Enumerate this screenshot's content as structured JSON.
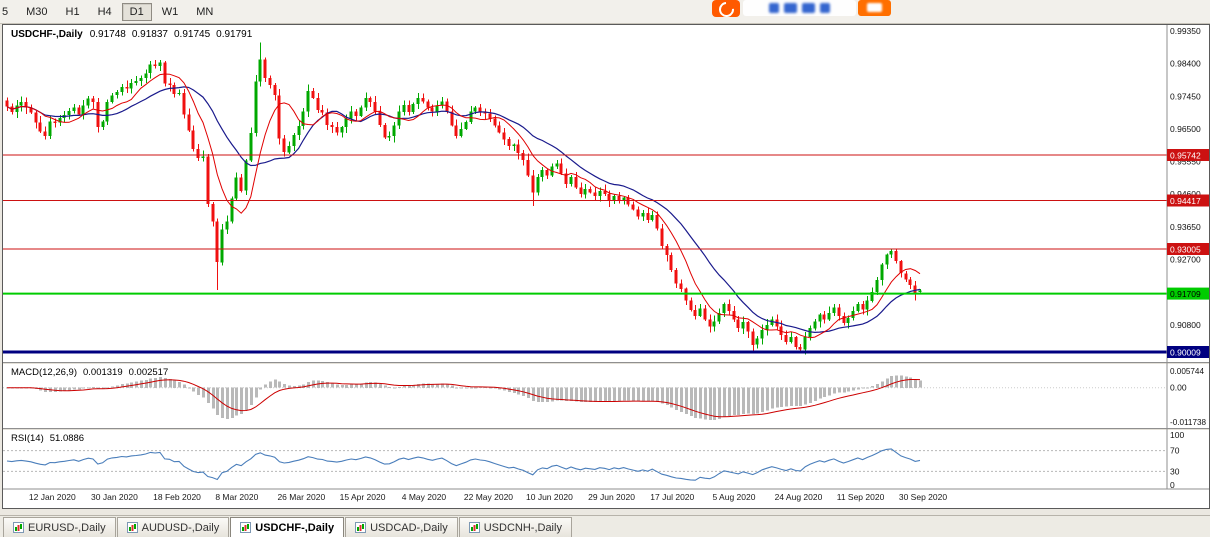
{
  "toolbar": {
    "periods": [
      {
        "label": "5",
        "active": false
      },
      {
        "label": "M30",
        "active": false
      },
      {
        "label": "H1",
        "active": false
      },
      {
        "label": "H4",
        "active": false
      },
      {
        "label": "D1",
        "active": true
      },
      {
        "label": "W1",
        "active": false
      },
      {
        "label": "MN",
        "active": false
      }
    ]
  },
  "overlay": {
    "left_color": "#ff5a00",
    "glyph_color": "#3566cf",
    "right_color": "#ff6f00"
  },
  "quote": {
    "symbol": "USDCHF-,Daily",
    "open": "0.91748",
    "high": "0.91837",
    "low": "0.91745",
    "close": "0.91791"
  },
  "indicators": {
    "macd": {
      "label": "MACD(12,26,9)",
      "value_main": "0.001319",
      "value_signal": "0.002517",
      "axis": [
        "0.005744",
        "0.00",
        "-0.011738"
      ]
    },
    "rsi": {
      "label": "RSI(14)",
      "value": "51.0886",
      "axis": [
        "100",
        "70",
        "30",
        "0"
      ]
    }
  },
  "price_scale": {
    "ticks": [
      "0.99350",
      "0.98400",
      "0.97450",
      "0.96500",
      "0.95550",
      "0.94600",
      "0.93650",
      "0.92700",
      "0.91750",
      "0.90800",
      "0.89850"
    ],
    "badges": [
      {
        "price": 0.95742,
        "label": "0.95742",
        "color": "#cc1111",
        "text_color": "#ffffff",
        "width": 1
      },
      {
        "price": 0.94417,
        "label": "0.94417",
        "color": "#cc1111",
        "text_color": "#ffffff",
        "width": 1
      },
      {
        "price": 0.93005,
        "label": "0.93005",
        "color": "#cc1111",
        "text_color": "#ffffff",
        "width": 1
      },
      {
        "price": 0.91709,
        "label": "0.91709",
        "color": "#00cc00",
        "text_color": "#000000",
        "width": 2
      },
      {
        "price": 0.90009,
        "label": "0.90009",
        "color": "#000080",
        "text_color": "#ffffff",
        "width": 3
      }
    ]
  },
  "x_axis": {
    "labels": [
      {
        "text": "12 Jan 2020",
        "i": 5
      },
      {
        "text": "30 Jan 2020",
        "i": 18
      },
      {
        "text": "18 Feb 2020",
        "i": 31
      },
      {
        "text": "8 Mar 2020",
        "i": 44
      },
      {
        "text": "26 Mar 2020",
        "i": 57
      },
      {
        "text": "15 Apr 2020",
        "i": 70
      },
      {
        "text": "4 May 2020",
        "i": 83
      },
      {
        "text": "22 May 2020",
        "i": 96
      },
      {
        "text": "10 Jun 2020",
        "i": 109
      },
      {
        "text": "29 Jun 2020",
        "i": 122
      },
      {
        "text": "17 Jul 2020",
        "i": 135
      },
      {
        "text": "5 Aug 2020",
        "i": 148
      },
      {
        "text": "24 Aug 2020",
        "i": 161
      },
      {
        "text": "11 Sep 2020",
        "i": 174
      },
      {
        "text": "30 Sep 2020",
        "i": 187
      }
    ]
  },
  "tabs": [
    {
      "label": "EURUSD-,Daily",
      "active": false
    },
    {
      "label": "AUDUSD-,Daily",
      "active": false
    },
    {
      "label": "USDCHF-,Daily",
      "active": true
    },
    {
      "label": "USDCAD-,Daily",
      "active": false
    },
    {
      "label": "USDCNH-,Daily",
      "active": false
    }
  ],
  "chart_data": {
    "type": "candlestick",
    "symbol": "USDCHF",
    "timeframe": "Daily",
    "ohlc_current": {
      "open": 0.91748,
      "high": 0.91837,
      "low": 0.91745,
      "close": 0.91791
    },
    "price_axis_range": [
      0.8972,
      0.99437
    ],
    "levels": [
      {
        "price": 0.95742,
        "color": "red"
      },
      {
        "price": 0.94417,
        "color": "red"
      },
      {
        "price": 0.93005,
        "color": "red"
      },
      {
        "price": 0.91709,
        "color": "green"
      },
      {
        "price": 0.90009,
        "color": "navy"
      }
    ],
    "macd_axis": {
      "max": 0.005744,
      "min": -0.011738
    },
    "rsi_levels": [
      70,
      30
    ],
    "colors": {
      "bull": "#00a800",
      "bear": "#f01010",
      "ma_fast": "#e00000",
      "ma_slow": "#1a1a8c",
      "macd_hist": "#b9b9b9",
      "macd_signal": "#cc0000",
      "rsi": "#4a7ebb"
    },
    "closes": [
      0.9715,
      0.97,
      0.9718,
      0.9728,
      0.9712,
      0.9698,
      0.9668,
      0.9643,
      0.963,
      0.9672,
      0.9668,
      0.9682,
      0.969,
      0.9702,
      0.9713,
      0.9692,
      0.9718,
      0.9738,
      0.9728,
      0.9655,
      0.9672,
      0.9728,
      0.9748,
      0.9758,
      0.9772,
      0.9768,
      0.9783,
      0.979,
      0.9798,
      0.9812,
      0.9838,
      0.9833,
      0.9843,
      0.9782,
      0.9778,
      0.9752,
      0.9755,
      0.9692,
      0.9645,
      0.9592,
      0.9565,
      0.957,
      0.9432,
      0.938,
      0.9262,
      0.9358,
      0.938,
      0.9448,
      0.9508,
      0.947,
      0.9558,
      0.9638,
      0.9788,
      0.9852,
      0.9798,
      0.9778,
      0.9748,
      0.9622,
      0.9582,
      0.96,
      0.9632,
      0.9658,
      0.97,
      0.976,
      0.974,
      0.9705,
      0.9698,
      0.9662,
      0.9655,
      0.964,
      0.9655,
      0.968,
      0.97,
      0.9688,
      0.9712,
      0.974,
      0.9728,
      0.97,
      0.9662,
      0.9625,
      0.963,
      0.966,
      0.97,
      0.972,
      0.97,
      0.9722,
      0.974,
      0.973,
      0.9712,
      0.97,
      0.9718,
      0.973,
      0.97,
      0.966,
      0.963,
      0.965,
      0.967,
      0.97,
      0.9712,
      0.97,
      0.9695,
      0.968,
      0.966,
      0.964,
      0.962,
      0.96,
      0.9605,
      0.958,
      0.956,
      0.9515,
      0.9465,
      0.951,
      0.953,
      0.9515,
      0.954,
      0.955,
      0.952,
      0.949,
      0.951,
      0.948,
      0.946,
      0.9475,
      0.9465,
      0.9455,
      0.947,
      0.946,
      0.944,
      0.9455,
      0.944,
      0.945,
      0.943,
      0.9415,
      0.9395,
      0.9405,
      0.9385,
      0.94,
      0.936,
      0.931,
      0.9283,
      0.924,
      0.92,
      0.9185,
      0.915,
      0.9123,
      0.9106,
      0.9128,
      0.9095,
      0.9075,
      0.909,
      0.9115,
      0.914,
      0.912,
      0.9095,
      0.907,
      0.9088,
      0.906,
      0.9022,
      0.904,
      0.9065,
      0.908,
      0.9095,
      0.9075,
      0.905,
      0.903,
      0.9045,
      0.9015,
      0.9008,
      0.9045,
      0.907,
      0.909,
      0.911,
      0.9095,
      0.9115,
      0.913,
      0.9105,
      0.9085,
      0.91,
      0.912,
      0.914,
      0.9125,
      0.915,
      0.9175,
      0.921,
      0.9255,
      0.9285,
      0.9295,
      0.9265,
      0.923,
      0.9212,
      0.9195,
      0.9168,
      0.91791
    ],
    "wick_overrides": {
      "44": {
        "low": 0.9182
      },
      "53": {
        "high": 0.9901
      },
      "110": {
        "low": 0.9425
      },
      "156": {
        "low": 0.9002
      },
      "166": {
        "low": 0.8998
      },
      "185": {
        "high": 0.9302
      }
    }
  }
}
